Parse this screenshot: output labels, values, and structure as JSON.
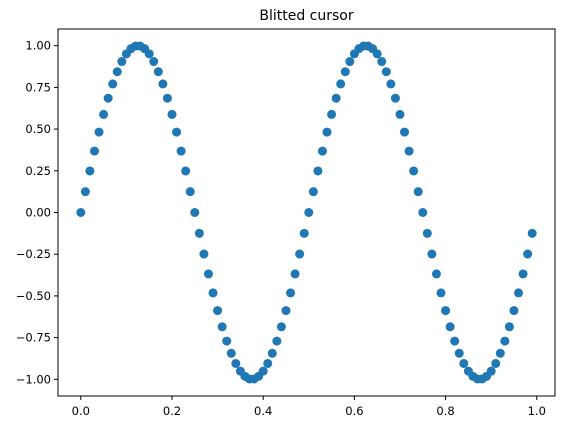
{
  "chart_data": {
    "type": "scatter",
    "title": "Blitted cursor",
    "xlabel": "",
    "ylabel": "",
    "xlim": [
      -0.05,
      1.04
    ],
    "ylim": [
      -1.1,
      1.1
    ],
    "x_ticks": [
      0.0,
      0.2,
      0.4,
      0.6,
      0.8,
      1.0
    ],
    "x_tick_labels": [
      "0.0",
      "0.2",
      "0.4",
      "0.6",
      "0.8",
      "1.0"
    ],
    "y_ticks": [
      1.0,
      0.75,
      0.5,
      0.25,
      0.0,
      -0.25,
      -0.5,
      -0.75,
      -1.0
    ],
    "y_tick_labels": [
      "1.00",
      "0.75",
      "0.50",
      "0.25",
      "0.00",
      "−0.25",
      "−0.50",
      "−0.75",
      "−1.00"
    ],
    "grid": false,
    "marker_color": "#1f77b4",
    "x": [
      0.0,
      0.01,
      0.02,
      0.03,
      0.04,
      0.05,
      0.06,
      0.07,
      0.08,
      0.09,
      0.1,
      0.11,
      0.12,
      0.13,
      0.14,
      0.15,
      0.16,
      0.17,
      0.18,
      0.19,
      0.2,
      0.21,
      0.22,
      0.23,
      0.24,
      0.25,
      0.26,
      0.27,
      0.28,
      0.29,
      0.3,
      0.31,
      0.32,
      0.33,
      0.34,
      0.35,
      0.36,
      0.37,
      0.38,
      0.39,
      0.4,
      0.41,
      0.42,
      0.43,
      0.44,
      0.45,
      0.46,
      0.47,
      0.48,
      0.49,
      0.5,
      0.51,
      0.52,
      0.53,
      0.54,
      0.55,
      0.56,
      0.57,
      0.58,
      0.59,
      0.6,
      0.61,
      0.62,
      0.63,
      0.64,
      0.65,
      0.66,
      0.67,
      0.68,
      0.69,
      0.7,
      0.71,
      0.72,
      0.73,
      0.74,
      0.75,
      0.76,
      0.77,
      0.78,
      0.79,
      0.8,
      0.81,
      0.82,
      0.83,
      0.84,
      0.85,
      0.86,
      0.87,
      0.88,
      0.89,
      0.9,
      0.91,
      0.92,
      0.93,
      0.94,
      0.95,
      0.96,
      0.97,
      0.98,
      0.99
    ],
    "y": [
      0.0,
      0.125,
      0.249,
      0.368,
      0.482,
      0.588,
      0.685,
      0.771,
      0.844,
      0.905,
      0.951,
      0.982,
      0.998,
      0.998,
      0.982,
      0.951,
      0.905,
      0.844,
      0.771,
      0.685,
      0.588,
      0.482,
      0.368,
      0.249,
      0.125,
      0.0,
      -0.125,
      -0.249,
      -0.368,
      -0.482,
      -0.588,
      -0.685,
      -0.771,
      -0.844,
      -0.905,
      -0.951,
      -0.982,
      -0.998,
      -0.998,
      -0.982,
      -0.951,
      -0.905,
      -0.844,
      -0.771,
      -0.685,
      -0.588,
      -0.482,
      -0.368,
      -0.249,
      -0.125,
      0.0,
      0.125,
      0.249,
      0.368,
      0.482,
      0.588,
      0.685,
      0.771,
      0.844,
      0.905,
      0.951,
      0.982,
      0.998,
      0.998,
      0.982,
      0.951,
      0.905,
      0.844,
      0.771,
      0.685,
      0.588,
      0.482,
      0.368,
      0.249,
      0.125,
      0.0,
      -0.125,
      -0.249,
      -0.368,
      -0.482,
      -0.588,
      -0.685,
      -0.771,
      -0.844,
      -0.905,
      -0.951,
      -0.982,
      -0.998,
      -0.998,
      -0.982,
      -0.951,
      -0.905,
      -0.844,
      -0.771,
      -0.685,
      -0.588,
      -0.482,
      -0.368,
      -0.249,
      -0.125
    ]
  }
}
